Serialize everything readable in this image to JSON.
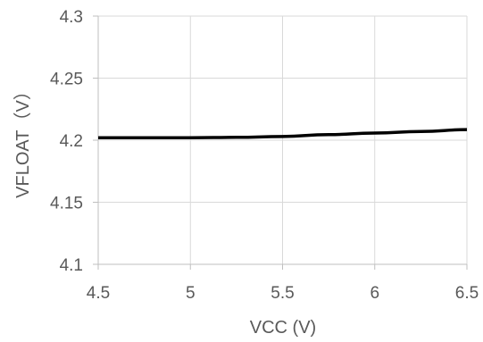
{
  "chart_data": {
    "type": "line",
    "title": "",
    "xlabel": "VCC (V)",
    "ylabel": "VFLOAT（V）",
    "xlim": [
      4.5,
      6.5
    ],
    "ylim": [
      4.1,
      4.3
    ],
    "x_ticks": [
      "4.5",
      "5",
      "5.5",
      "6",
      "6.5"
    ],
    "y_ticks": [
      "4.3",
      "4.25",
      "4.2",
      "4.15",
      "4.1"
    ],
    "grid": true,
    "series": [
      {
        "x": [
          4.5,
          4.75,
          5.0,
          5.25,
          5.5,
          5.75,
          6.0,
          6.25,
          6.5
        ],
        "y": [
          4.202,
          4.202,
          4.202,
          4.2023,
          4.203,
          4.2045,
          4.2058,
          4.207,
          4.2085
        ],
        "color": "#000000"
      }
    ]
  }
}
